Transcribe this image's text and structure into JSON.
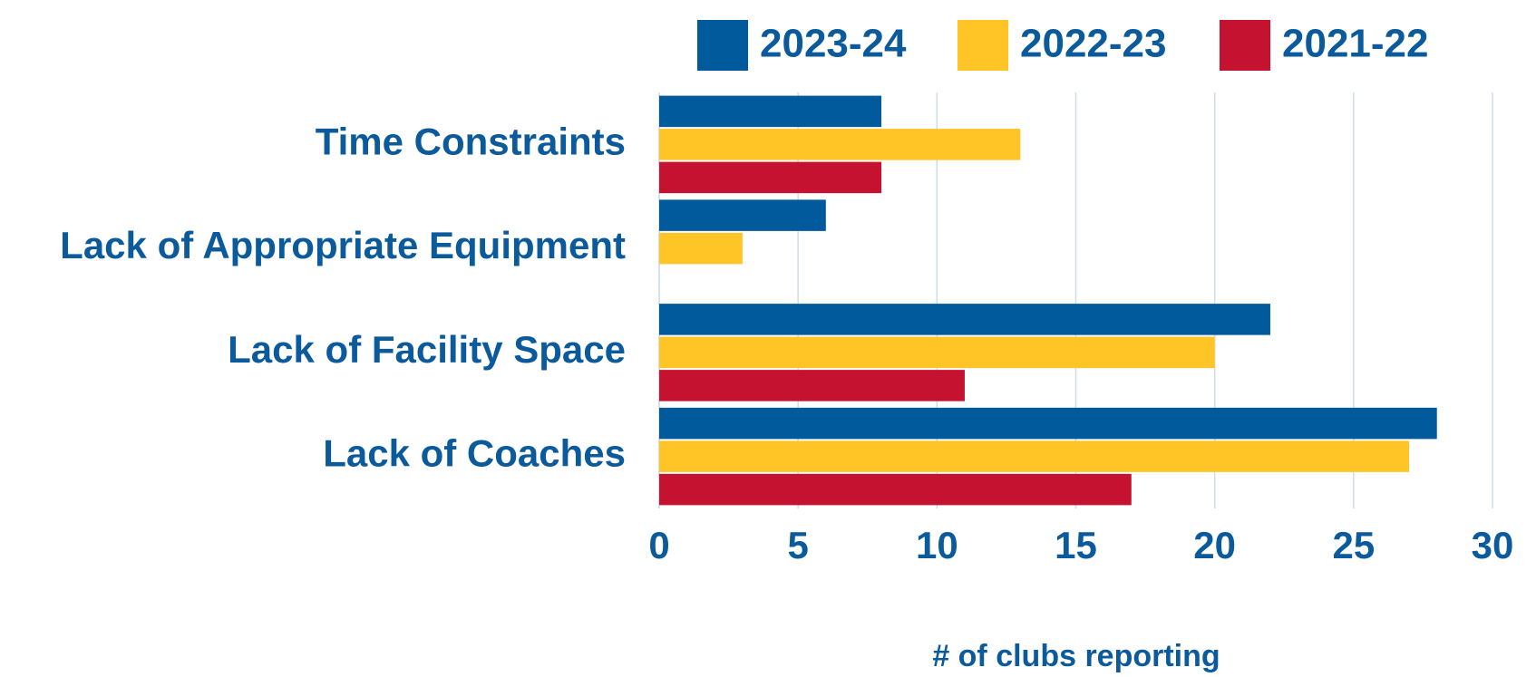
{
  "chart_data": {
    "type": "bar",
    "orientation": "horizontal",
    "categories": [
      "Time Constraints",
      "Lack of Appropriate Equipment",
      "Lack of Facility Space",
      "Lack of Coaches"
    ],
    "series": [
      {
        "name": "2023-24",
        "color": "#005a9c",
        "values": [
          8,
          6,
          22,
          28
        ]
      },
      {
        "name": "2022-23",
        "color": "#ffc425",
        "values": [
          13,
          3,
          20,
          27
        ]
      },
      {
        "name": "2021-22",
        "color": "#c41230",
        "values": [
          8,
          null,
          11,
          17
        ]
      }
    ],
    "x_label": "# of clubs reporting",
    "xlim": [
      0,
      30
    ],
    "xticks": [
      0,
      5,
      10,
      15,
      20,
      25,
      30
    ],
    "grid": true,
    "legend": "top"
  }
}
